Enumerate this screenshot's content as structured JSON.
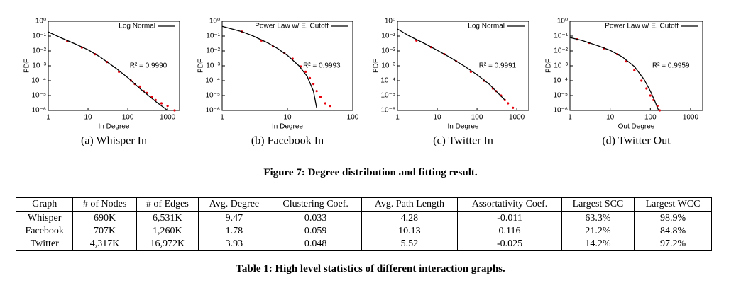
{
  "chart_data": [
    {
      "type": "line",
      "caption": "(a) Whisper In",
      "x_label": "In Degree",
      "y_label": "PDF",
      "annotation": "R² = 0.9990",
      "xscale": "log",
      "yscale": "log",
      "xlim": [
        1,
        2000
      ],
      "ylim": [
        1e-06,
        1
      ],
      "legend": "top-right",
      "xticks": [
        1,
        10,
        100,
        1000
      ],
      "yticks": [
        {
          "value": 1e-06,
          "label": "10⁻⁶"
        },
        {
          "value": 1e-05,
          "label": "10⁻⁵"
        },
        {
          "value": 0.0001,
          "label": "10⁻⁴"
        },
        {
          "value": 0.001,
          "label": "10⁻³"
        },
        {
          "value": 0.01,
          "label": "10⁻²"
        },
        {
          "value": 0.1,
          "label": "10⁻¹"
        },
        {
          "value": 1,
          "label": "10⁰"
        }
      ],
      "series": [
        {
          "type": "scatter",
          "color": "#e8000b",
          "x": [
            3,
            7,
            15,
            30,
            60,
            120,
            150,
            200,
            250,
            300,
            400,
            500,
            700,
            1000,
            1500
          ],
          "values": [
            0.045,
            0.017,
            0.006,
            0.0018,
            0.0004,
            0.0001,
            6e-05,
            4e-05,
            2e-05,
            1.5e-05,
            8e-06,
            5e-06,
            3e-06,
            2e-06,
            1e-06
          ]
        },
        {
          "type": "line",
          "name": "Log Normal",
          "color": "#000000",
          "x": [
            1,
            2,
            5,
            10,
            20,
            50,
            100,
            200,
            500,
            1000
          ],
          "values": [
            0.19,
            0.08,
            0.028,
            0.012,
            0.004,
            0.0007,
            0.00016,
            3e-05,
            4e-06,
            1e-06
          ]
        }
      ]
    },
    {
      "type": "line",
      "caption": "(b) Facebook In",
      "x_label": "In Degree",
      "y_label": "PDF",
      "annotation": "R² = 0.9993",
      "xscale": "log",
      "yscale": "log",
      "xlim": [
        1,
        100
      ],
      "ylim": [
        1e-06,
        1
      ],
      "legend": "top-right",
      "xticks": [
        1,
        10,
        100
      ],
      "yticks": [
        {
          "value": 1e-06,
          "label": "10⁻⁶"
        },
        {
          "value": 1e-05,
          "label": "10⁻⁵"
        },
        {
          "value": 0.0001,
          "label": "10⁻⁴"
        },
        {
          "value": 0.001,
          "label": "10⁻³"
        },
        {
          "value": 0.01,
          "label": "10⁻²"
        },
        {
          "value": 0.1,
          "label": "10⁻¹"
        },
        {
          "value": 1,
          "label": "10⁰"
        }
      ],
      "series": [
        {
          "type": "scatter",
          "color": "#e8000b",
          "x": [
            2,
            4,
            6,
            9,
            12,
            16,
            19,
            22,
            25,
            28,
            32,
            38,
            45
          ],
          "values": [
            0.2,
            0.05,
            0.02,
            0.007,
            0.003,
            0.0009,
            0.0004,
            0.00015,
            6e-05,
            2e-05,
            8e-06,
            3e-06,
            2e-06
          ]
        },
        {
          "type": "line",
          "name": "Power Law w/ E. Cutoff",
          "color": "#000000",
          "x": [
            1,
            2,
            3,
            5,
            7,
            10,
            15,
            20,
            25,
            28
          ],
          "values": [
            0.45,
            0.2,
            0.1,
            0.035,
            0.015,
            0.005,
            0.001,
            0.0002,
            2e-05,
            1.5e-06
          ]
        }
      ]
    },
    {
      "type": "line",
      "caption": "(c) Twitter In",
      "x_label": "In Degree",
      "y_label": "PDF",
      "annotation": "R² = 0.9991",
      "xscale": "log",
      "yscale": "log",
      "xlim": [
        1,
        2000
      ],
      "ylim": [
        1e-06,
        1
      ],
      "legend": "top-right",
      "xticks": [
        1,
        10,
        100,
        1000
      ],
      "yticks": [
        {
          "value": 1e-06,
          "label": "10⁻⁶"
        },
        {
          "value": 1e-05,
          "label": "10⁻⁵"
        },
        {
          "value": 0.0001,
          "label": "10⁻⁴"
        },
        {
          "value": 0.001,
          "label": "10⁻³"
        },
        {
          "value": 0.01,
          "label": "10⁻²"
        },
        {
          "value": 0.1,
          "label": "10⁻¹"
        },
        {
          "value": 1,
          "label": "10⁰"
        }
      ],
      "series": [
        {
          "type": "scatter",
          "color": "#e8000b",
          "x": [
            3,
            7,
            15,
            30,
            70,
            150,
            250,
            300,
            400,
            500,
            600,
            800
          ],
          "values": [
            0.05,
            0.018,
            0.006,
            0.002,
            0.0004,
            0.0001,
            3e-05,
            2e-05,
            1e-05,
            5e-06,
            3e-06,
            1.5e-06
          ]
        },
        {
          "type": "line",
          "name": "Log Normal",
          "color": "#000000",
          "x": [
            1,
            2,
            5,
            10,
            20,
            50,
            100,
            200,
            500
          ],
          "values": [
            0.3,
            0.1,
            0.03,
            0.011,
            0.004,
            0.0009,
            0.00025,
            6e-05,
            5e-06
          ]
        }
      ]
    },
    {
      "type": "line",
      "caption": "(d) Twitter Out",
      "x_label": "Out Degree",
      "y_label": "PDF",
      "annotation": "R² = 0.9959",
      "xscale": "log",
      "yscale": "log",
      "xlim": [
        1,
        2000
      ],
      "ylim": [
        1e-06,
        1
      ],
      "legend": "top-right",
      "xticks": [
        1,
        10,
        100,
        1000
      ],
      "yticks": [
        {
          "value": 1e-06,
          "label": "10⁻⁶"
        },
        {
          "value": 1e-05,
          "label": "10⁻⁵"
        },
        {
          "value": 0.0001,
          "label": "10⁻⁴"
        },
        {
          "value": 0.001,
          "label": "10⁻³"
        },
        {
          "value": 0.01,
          "label": "10⁻²"
        },
        {
          "value": 0.1,
          "label": "10⁻¹"
        },
        {
          "value": 1,
          "label": "10⁰"
        }
      ],
      "series": [
        {
          "type": "scatter",
          "color": "#e8000b",
          "x": [
            1.5,
            3,
            7,
            15,
            25,
            40,
            60,
            80,
            100,
            120,
            150,
            170
          ],
          "values": [
            0.06,
            0.035,
            0.015,
            0.006,
            0.002,
            0.0005,
            0.0001,
            3e-05,
            1e-05,
            5e-06,
            2e-06,
            1e-06
          ]
        },
        {
          "type": "line",
          "name": "Power Law w/ E. Cutoff",
          "color": "#000000",
          "x": [
            1,
            2,
            5,
            10,
            20,
            40,
            70,
            100,
            130,
            160
          ],
          "values": [
            0.08,
            0.05,
            0.022,
            0.011,
            0.004,
            0.0009,
            0.00012,
            2e-05,
            4e-06,
            1e-06
          ]
        }
      ]
    }
  ],
  "figure_caption": "Figure 7: Degree distribution and fitting result.",
  "table": {
    "columns": [
      "Graph",
      "# of Nodes",
      "# of Edges",
      "Avg. Degree",
      "Clustering Coef.",
      "Avg. Path Length",
      "Assortativity Coef.",
      "Largest SCC",
      "Largest WCC"
    ],
    "rows": [
      [
        "Whisper",
        "690K",
        "6,531K",
        "9.47",
        "0.033",
        "4.28",
        "-0.011",
        "63.3%",
        "98.9%"
      ],
      [
        "Facebook",
        "707K",
        "1,260K",
        "1.78",
        "0.059",
        "10.13",
        "0.116",
        "21.2%",
        "84.8%"
      ],
      [
        "Twitter",
        "4,317K",
        "16,972K",
        "3.93",
        "0.048",
        "5.52",
        "-0.025",
        "14.2%",
        "97.2%"
      ]
    ]
  },
  "table_caption": "Table 1: High level statistics of different interaction graphs."
}
